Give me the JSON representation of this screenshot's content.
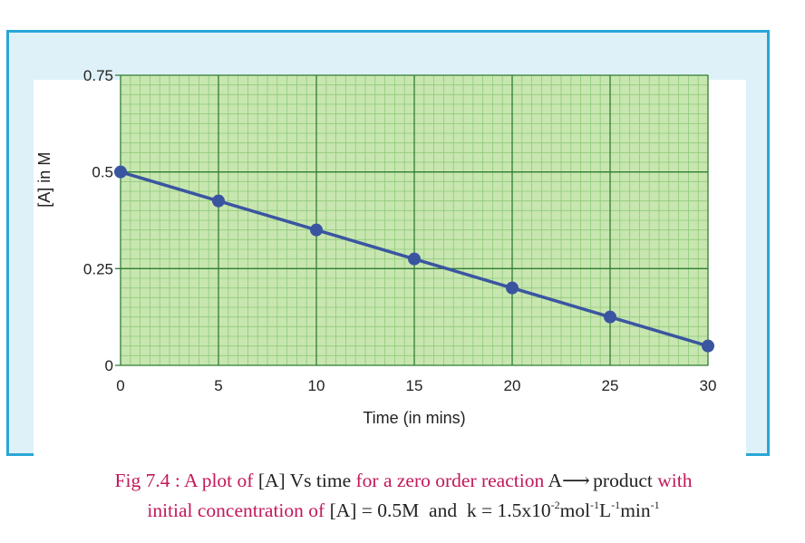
{
  "chart_data": {
    "type": "line",
    "title": "",
    "xlabel": "Time (in mins)",
    "ylabel": "[A] in M",
    "xlim": [
      0,
      30
    ],
    "ylim": [
      0,
      0.75
    ],
    "x_ticks": [
      "0",
      "5",
      "10",
      "15",
      "20",
      "25",
      "30"
    ],
    "y_ticks": [
      "0",
      "0.25",
      "0.5",
      "0.75"
    ],
    "grid": true,
    "colors": {
      "background": "#c8e6b0",
      "major_grid": "#2f7d32",
      "minor_grid": "#8fca7a",
      "line": "#3a55a0"
    },
    "series": [
      {
        "x": [
          0,
          5,
          10,
          15,
          20,
          25,
          30
        ],
        "y": [
          0.5,
          0.425,
          0.35,
          0.275,
          0.2,
          0.125,
          0.05
        ]
      }
    ]
  },
  "caption": {
    "fig": "Fig 7.4 : A plot of",
    "a1": "[A] Vs time",
    "mid": "for a zero order reaction",
    "reactant": "A",
    "arrow": "⟶",
    "product": "product",
    "with": "with",
    "line2_pink": "initial concentration of",
    "conc": "[A] = 0.5M",
    "and": "and",
    "k": "k = 1.5x10",
    "k_exp": "-2",
    "mol": "mol",
    "mol_exp": "-1",
    "L": "L",
    "L_exp": "-1",
    "min": "min",
    "min_exp": "-1"
  }
}
